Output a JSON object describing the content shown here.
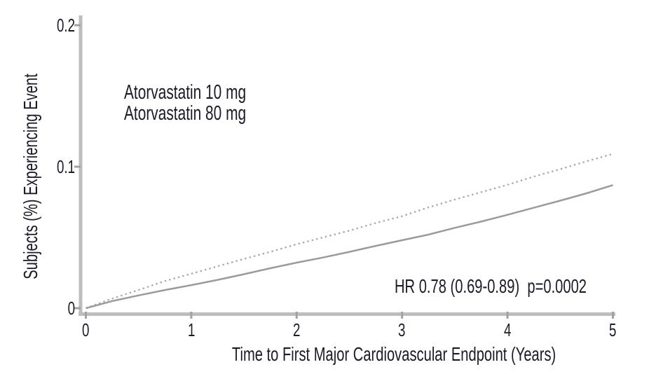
{
  "colors": {
    "text": "#1b1b26",
    "axis": "#bdbdbd",
    "tick_mark": "#a2a2a2",
    "curve_10mg": "#a8a8a8",
    "curve_80mg": "#9b9b9b"
  },
  "chart_data": {
    "type": "line",
    "title": "",
    "xlabel": "Time to First Major Cardiovascular Endpoint (Years)",
    "ylabel": "Subjects (%) Experiencing Event",
    "xlim": [
      0,
      5
    ],
    "ylim": [
      0,
      0.2
    ],
    "x_ticks": [
      0,
      1,
      2,
      3,
      4,
      5
    ],
    "x_tick_labels": [
      "0",
      "1",
      "2",
      "3",
      "4",
      "5"
    ],
    "y_ticks": [
      0,
      0.1,
      0.2
    ],
    "y_tick_labels": [
      "0",
      "0.1",
      "0.2"
    ],
    "grid": false,
    "legend_position": "upper-left-inside",
    "annotation": "HR 0.78 (0.69-0.89)  p=0.0002",
    "series": [
      {
        "name": "Atorvastatin 10 mg",
        "style": "dotted",
        "color": "#a8a8a8",
        "x": [
          0,
          0.25,
          0.5,
          0.75,
          1,
          1.25,
          1.5,
          1.75,
          2,
          2.25,
          2.5,
          2.75,
          3,
          3.25,
          3.5,
          3.75,
          4,
          4.25,
          4.5,
          4.75,
          5
        ],
        "y": [
          0,
          0.0068,
          0.0128,
          0.0192,
          0.0243,
          0.0296,
          0.0348,
          0.0398,
          0.0452,
          0.05,
          0.0548,
          0.0602,
          0.065,
          0.0712,
          0.0768,
          0.082,
          0.0872,
          0.093,
          0.0982,
          0.1038,
          0.109
        ]
      },
      {
        "name": "Atorvastatin 80 mg",
        "style": "solid",
        "color": "#9b9b9b",
        "x": [
          0,
          0.25,
          0.5,
          0.75,
          1,
          1.25,
          1.5,
          1.75,
          2,
          2.25,
          2.5,
          2.75,
          3,
          3.25,
          3.5,
          3.75,
          4,
          4.25,
          4.5,
          4.75,
          5
        ],
        "y": [
          0,
          0.005,
          0.009,
          0.0128,
          0.0163,
          0.02,
          0.024,
          0.0282,
          0.0322,
          0.0358,
          0.0398,
          0.044,
          0.048,
          0.052,
          0.0568,
          0.0612,
          0.066,
          0.071,
          0.076,
          0.0812,
          0.087
        ]
      }
    ]
  }
}
